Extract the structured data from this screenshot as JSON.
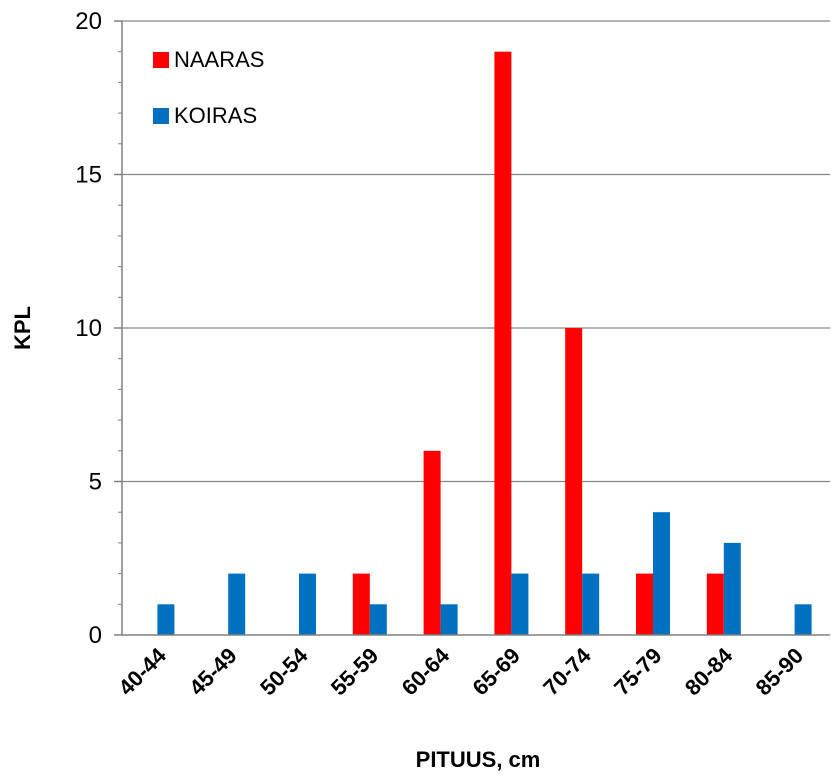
{
  "chart_data": {
    "type": "bar",
    "categories": [
      "40-44",
      "45-49",
      "50-54",
      "55-59",
      "60-64",
      "65-69",
      "70-74",
      "75-79",
      "80-84",
      "85-90"
    ],
    "series": [
      {
        "name": "NAARAS",
        "color": "#ff0000",
        "values": [
          0,
          0,
          0,
          2,
          6,
          19,
          10,
          2,
          2,
          0
        ]
      },
      {
        "name": "KOIRAS",
        "color": "#0070c0",
        "values": [
          1,
          2,
          2,
          1,
          1,
          2,
          2,
          4,
          3,
          1
        ]
      }
    ],
    "xlabel": "PITUUS, cm",
    "ylabel": "KPL",
    "ylim": [
      0,
      20
    ],
    "yticks": [
      0,
      5,
      10,
      15,
      20
    ],
    "grid": true,
    "legend_position": "top-left"
  }
}
